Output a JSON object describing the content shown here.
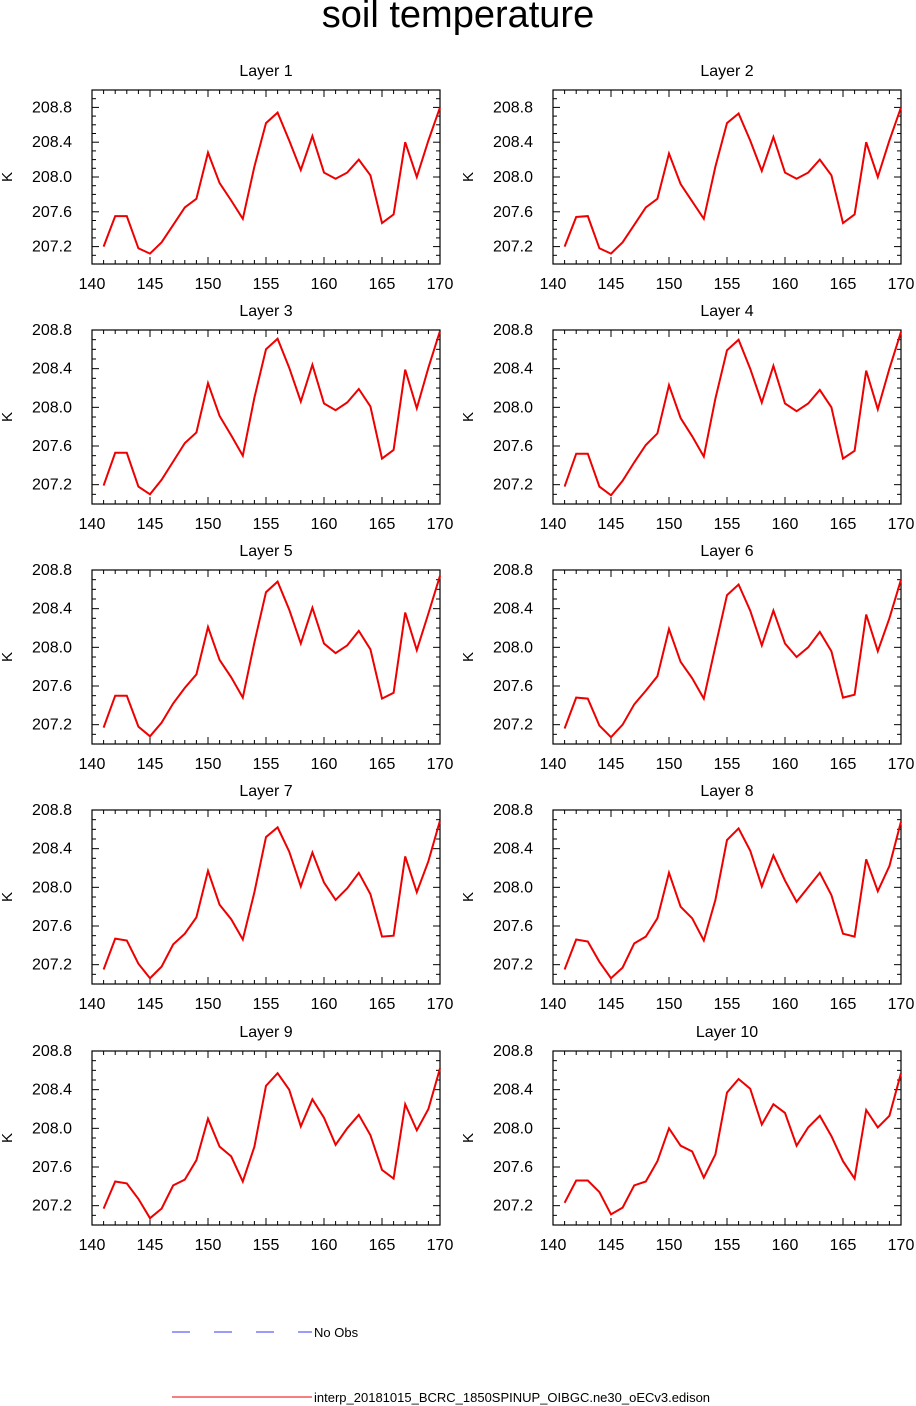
{
  "title": "soil temperature",
  "legend": {
    "items": [
      {
        "label": "No Obs",
        "color": "#3a3aff",
        "style": "dashed"
      },
      {
        "label": "interp_20181015_BCRC_1850SPINUP_OIBGC.ne30_oECv3.edison",
        "color": "#ee0000",
        "style": "solid"
      }
    ]
  },
  "chart_data": [
    {
      "type": "line",
      "title": "Layer 1",
      "ylabel": "K",
      "xlim": [
        140,
        170
      ],
      "ylim": [
        207.0,
        209.0
      ],
      "xticks": [
        140,
        145,
        150,
        155,
        160,
        165,
        170
      ],
      "yticks": [
        207.2,
        207.6,
        208.0,
        208.4,
        208.8
      ],
      "x": [
        141,
        142,
        143,
        144,
        145,
        146,
        147,
        148,
        149,
        150,
        151,
        152,
        153,
        154,
        155,
        156,
        157,
        158,
        159,
        160,
        161,
        162,
        163,
        164,
        165,
        166,
        167,
        168,
        169,
        170
      ],
      "series": [
        {
          "values": [
            207.2,
            207.55,
            207.55,
            207.18,
            207.12,
            207.25,
            207.45,
            207.65,
            207.75,
            208.28,
            207.93,
            207.73,
            207.52,
            208.12,
            208.62,
            208.74,
            208.42,
            208.08,
            208.47,
            208.05,
            207.98,
            208.05,
            208.2,
            208.02,
            207.47,
            207.57,
            208.4,
            208.0,
            208.42,
            208.8
          ],
          "color": "#ee0000"
        }
      ]
    },
    {
      "type": "line",
      "title": "Layer 2",
      "ylabel": "K",
      "xlim": [
        140,
        170
      ],
      "ylim": [
        207.0,
        209.0
      ],
      "xticks": [
        140,
        145,
        150,
        155,
        160,
        165,
        170
      ],
      "yticks": [
        207.2,
        207.6,
        208.0,
        208.4,
        208.8
      ],
      "x": [
        141,
        142,
        143,
        144,
        145,
        146,
        147,
        148,
        149,
        150,
        151,
        152,
        153,
        154,
        155,
        156,
        157,
        158,
        159,
        160,
        161,
        162,
        163,
        164,
        165,
        166,
        167,
        168,
        169,
        170
      ],
      "series": [
        {
          "values": [
            207.2,
            207.54,
            207.55,
            207.18,
            207.12,
            207.25,
            207.45,
            207.65,
            207.75,
            208.27,
            207.92,
            207.72,
            207.52,
            208.12,
            208.62,
            208.73,
            208.42,
            208.07,
            208.46,
            208.05,
            207.98,
            208.05,
            208.2,
            208.02,
            207.47,
            207.57,
            208.4,
            208.0,
            208.42,
            208.8
          ],
          "color": "#ee0000"
        }
      ]
    },
    {
      "type": "line",
      "title": "Layer 3",
      "ylabel": "K",
      "xlim": [
        140,
        170
      ],
      "ylim": [
        207.0,
        208.8
      ],
      "xticks": [
        140,
        145,
        150,
        155,
        160,
        165,
        170
      ],
      "yticks": [
        207.2,
        207.6,
        208.0,
        208.4,
        208.8
      ],
      "x": [
        141,
        142,
        143,
        144,
        145,
        146,
        147,
        148,
        149,
        150,
        151,
        152,
        153,
        154,
        155,
        156,
        157,
        158,
        159,
        160,
        161,
        162,
        163,
        164,
        165,
        166,
        167,
        168,
        169,
        170
      ],
      "series": [
        {
          "values": [
            207.19,
            207.53,
            207.53,
            207.18,
            207.1,
            207.25,
            207.44,
            207.63,
            207.74,
            208.25,
            207.91,
            207.71,
            207.5,
            208.1,
            208.6,
            208.71,
            208.41,
            208.06,
            208.44,
            208.04,
            207.97,
            208.05,
            208.19,
            208.01,
            207.47,
            207.56,
            208.39,
            207.99,
            208.41,
            208.79
          ],
          "color": "#ee0000"
        }
      ]
    },
    {
      "type": "line",
      "title": "Layer 4",
      "ylabel": "K",
      "xlim": [
        140,
        170
      ],
      "ylim": [
        207.0,
        208.8
      ],
      "xticks": [
        140,
        145,
        150,
        155,
        160,
        165,
        170
      ],
      "yticks": [
        207.2,
        207.6,
        208.0,
        208.4,
        208.8
      ],
      "x": [
        141,
        142,
        143,
        144,
        145,
        146,
        147,
        148,
        149,
        150,
        151,
        152,
        153,
        154,
        155,
        156,
        157,
        158,
        159,
        160,
        161,
        162,
        163,
        164,
        165,
        166,
        167,
        168,
        169,
        170
      ],
      "series": [
        {
          "values": [
            207.18,
            207.52,
            207.52,
            207.18,
            207.09,
            207.24,
            207.43,
            207.61,
            207.73,
            208.23,
            207.89,
            207.7,
            207.49,
            208.09,
            208.59,
            208.7,
            208.4,
            208.05,
            208.43,
            208.04,
            207.96,
            208.04,
            208.18,
            208.0,
            207.47,
            207.55,
            208.38,
            207.98,
            208.4,
            208.78
          ],
          "color": "#ee0000"
        }
      ]
    },
    {
      "type": "line",
      "title": "Layer 5",
      "ylabel": "K",
      "xlim": [
        140,
        170
      ],
      "ylim": [
        207.0,
        208.8
      ],
      "xticks": [
        140,
        145,
        150,
        155,
        160,
        165,
        170
      ],
      "yticks": [
        207.2,
        207.6,
        208.0,
        208.4,
        208.8
      ],
      "x": [
        141,
        142,
        143,
        144,
        145,
        146,
        147,
        148,
        149,
        150,
        151,
        152,
        153,
        154,
        155,
        156,
        157,
        158,
        159,
        160,
        161,
        162,
        163,
        164,
        165,
        166,
        167,
        168,
        169,
        170
      ],
      "series": [
        {
          "values": [
            207.17,
            207.5,
            207.5,
            207.18,
            207.08,
            207.22,
            207.42,
            207.58,
            207.72,
            208.21,
            207.87,
            207.69,
            207.48,
            208.05,
            208.57,
            208.68,
            208.39,
            208.04,
            208.41,
            208.04,
            207.94,
            208.02,
            208.17,
            207.98,
            207.47,
            207.53,
            208.36,
            207.97,
            208.35,
            208.74
          ],
          "color": "#ee0000"
        }
      ]
    },
    {
      "type": "line",
      "title": "Layer 6",
      "ylabel": "K",
      "xlim": [
        140,
        170
      ],
      "ylim": [
        207.0,
        208.8
      ],
      "xticks": [
        140,
        145,
        150,
        155,
        160,
        165,
        170
      ],
      "yticks": [
        207.2,
        207.6,
        208.0,
        208.4,
        208.8
      ],
      "x": [
        141,
        142,
        143,
        144,
        145,
        146,
        147,
        148,
        149,
        150,
        151,
        152,
        153,
        154,
        155,
        156,
        157,
        158,
        159,
        160,
        161,
        162,
        163,
        164,
        165,
        166,
        167,
        168,
        169,
        170
      ],
      "series": [
        {
          "values": [
            207.16,
            207.48,
            207.47,
            207.19,
            207.07,
            207.2,
            207.41,
            207.55,
            207.7,
            208.19,
            207.85,
            207.68,
            207.47,
            208.01,
            208.54,
            208.65,
            208.38,
            208.02,
            208.38,
            208.04,
            207.9,
            208.0,
            208.16,
            207.96,
            207.48,
            207.51,
            208.34,
            207.96,
            208.3,
            208.7
          ],
          "color": "#ee0000"
        }
      ]
    },
    {
      "type": "line",
      "title": "Layer 7",
      "ylabel": "K",
      "xlim": [
        140,
        170
      ],
      "ylim": [
        207.0,
        208.8
      ],
      "xticks": [
        140,
        145,
        150,
        155,
        160,
        165,
        170
      ],
      "yticks": [
        207.2,
        207.6,
        208.0,
        208.4,
        208.8
      ],
      "x": [
        141,
        142,
        143,
        144,
        145,
        146,
        147,
        148,
        149,
        150,
        151,
        152,
        153,
        154,
        155,
        156,
        157,
        158,
        159,
        160,
        161,
        162,
        163,
        164,
        165,
        166,
        167,
        168,
        169,
        170
      ],
      "series": [
        {
          "values": [
            207.15,
            207.47,
            207.45,
            207.21,
            207.06,
            207.18,
            207.41,
            207.52,
            207.69,
            208.17,
            207.82,
            207.67,
            207.46,
            207.95,
            208.52,
            208.62,
            208.37,
            208.01,
            208.36,
            208.05,
            207.87,
            207.99,
            208.15,
            207.93,
            207.49,
            207.5,
            208.32,
            207.95,
            208.27,
            208.69
          ],
          "color": "#ee0000"
        }
      ]
    },
    {
      "type": "line",
      "title": "Layer 8",
      "ylabel": "K",
      "xlim": [
        140,
        170
      ],
      "ylim": [
        207.0,
        208.8
      ],
      "xticks": [
        140,
        145,
        150,
        155,
        160,
        165,
        170
      ],
      "yticks": [
        207.2,
        207.6,
        208.0,
        208.4,
        208.8
      ],
      "x": [
        141,
        142,
        143,
        144,
        145,
        146,
        147,
        148,
        149,
        150,
        151,
        152,
        153,
        154,
        155,
        156,
        157,
        158,
        159,
        160,
        161,
        162,
        163,
        164,
        165,
        166,
        167,
        168,
        169,
        170
      ],
      "series": [
        {
          "values": [
            207.15,
            207.46,
            207.44,
            207.23,
            207.06,
            207.17,
            207.42,
            207.49,
            207.68,
            208.15,
            207.8,
            207.68,
            207.45,
            207.87,
            208.49,
            208.61,
            208.38,
            208.01,
            208.33,
            208.07,
            207.85,
            208.0,
            208.15,
            207.92,
            207.52,
            207.49,
            208.29,
            207.96,
            208.22,
            208.68
          ],
          "color": "#ee0000"
        }
      ]
    },
    {
      "type": "line",
      "title": "Layer 9",
      "ylabel": "K",
      "xlim": [
        140,
        170
      ],
      "ylim": [
        207.0,
        208.8
      ],
      "xticks": [
        140,
        145,
        150,
        155,
        160,
        165,
        170
      ],
      "yticks": [
        207.2,
        207.6,
        208.0,
        208.4,
        208.8
      ],
      "x": [
        141,
        142,
        143,
        144,
        145,
        146,
        147,
        148,
        149,
        150,
        151,
        152,
        153,
        154,
        155,
        156,
        157,
        158,
        159,
        160,
        161,
        162,
        163,
        164,
        165,
        166,
        167,
        168,
        169,
        170
      ],
      "series": [
        {
          "values": [
            207.17,
            207.45,
            207.43,
            207.27,
            207.07,
            207.17,
            207.41,
            207.47,
            207.67,
            208.1,
            207.81,
            207.71,
            207.45,
            207.81,
            208.44,
            208.57,
            208.4,
            208.02,
            208.3,
            208.11,
            207.83,
            208.0,
            208.14,
            207.93,
            207.57,
            207.48,
            208.25,
            207.98,
            208.2,
            208.62
          ],
          "color": "#ee0000"
        }
      ]
    },
    {
      "type": "line",
      "title": "Layer 10",
      "ylabel": "K",
      "xlim": [
        140,
        170
      ],
      "ylim": [
        207.0,
        208.8
      ],
      "xticks": [
        140,
        145,
        150,
        155,
        160,
        165,
        170
      ],
      "yticks": [
        207.2,
        207.6,
        208.0,
        208.4,
        208.8
      ],
      "x": [
        141,
        142,
        143,
        144,
        145,
        146,
        147,
        148,
        149,
        150,
        151,
        152,
        153,
        154,
        155,
        156,
        157,
        158,
        159,
        160,
        161,
        162,
        163,
        164,
        165,
        166,
        167,
        168,
        169,
        170
      ],
      "series": [
        {
          "values": [
            207.23,
            207.46,
            207.46,
            207.34,
            207.11,
            207.18,
            207.41,
            207.45,
            207.66,
            208.0,
            207.82,
            207.76,
            207.49,
            207.73,
            208.37,
            208.51,
            208.41,
            208.04,
            208.25,
            208.16,
            207.82,
            208.01,
            208.13,
            207.92,
            207.66,
            207.48,
            208.19,
            208.01,
            208.13,
            208.57
          ],
          "color": "#ee0000"
        }
      ]
    }
  ]
}
